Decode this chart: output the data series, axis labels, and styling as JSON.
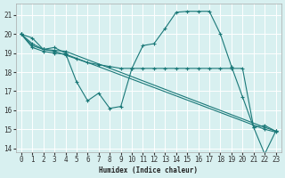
{
  "title": "",
  "xlabel": "Humidex (Indice chaleur)",
  "ylabel": "",
  "bg_color": "#d8f0f0",
  "line_color": "#1a7878",
  "xlim": [
    -0.5,
    23.5
  ],
  "ylim": [
    13.8,
    21.6
  ],
  "yticks": [
    14,
    15,
    16,
    17,
    18,
    19,
    20,
    21
  ],
  "xticks": [
    0,
    1,
    2,
    3,
    4,
    5,
    6,
    7,
    8,
    9,
    10,
    11,
    12,
    13,
    14,
    15,
    16,
    17,
    18,
    19,
    20,
    21,
    22,
    23
  ],
  "line1_x": [
    0,
    1,
    2,
    3,
    4,
    5,
    6,
    7,
    8,
    9,
    10,
    11,
    12,
    13,
    14,
    15,
    16,
    17,
    18,
    19,
    20,
    21,
    22,
    23
  ],
  "line1_y": [
    20.0,
    19.8,
    19.2,
    19.3,
    19.0,
    17.5,
    16.5,
    16.9,
    16.1,
    16.2,
    18.2,
    19.4,
    19.5,
    20.3,
    21.15,
    21.2,
    21.2,
    21.2,
    20.0,
    18.3,
    16.7,
    15.1,
    13.7,
    14.9
  ],
  "line2_x": [
    0,
    1,
    2,
    3,
    4,
    5,
    6,
    7,
    8,
    9,
    10,
    11,
    12,
    13,
    14,
    15,
    16,
    17,
    18,
    19,
    20,
    21,
    22,
    23
  ],
  "line2_y": [
    20.0,
    19.5,
    19.2,
    19.1,
    18.9,
    18.7,
    18.5,
    18.4,
    18.3,
    18.2,
    18.2,
    18.2,
    18.2,
    18.2,
    18.2,
    18.2,
    18.2,
    18.2,
    18.2,
    18.2,
    18.2,
    15.1,
    15.2,
    14.9
  ],
  "line3_x": [
    0,
    1,
    2,
    3,
    4,
    22,
    23
  ],
  "line3_y": [
    20.0,
    19.4,
    19.2,
    19.15,
    19.1,
    15.1,
    14.9
  ],
  "line4_x": [
    0,
    1,
    2,
    3,
    4,
    22,
    23
  ],
  "line4_y": [
    20.0,
    19.3,
    19.1,
    19.0,
    18.95,
    15.0,
    14.85
  ]
}
